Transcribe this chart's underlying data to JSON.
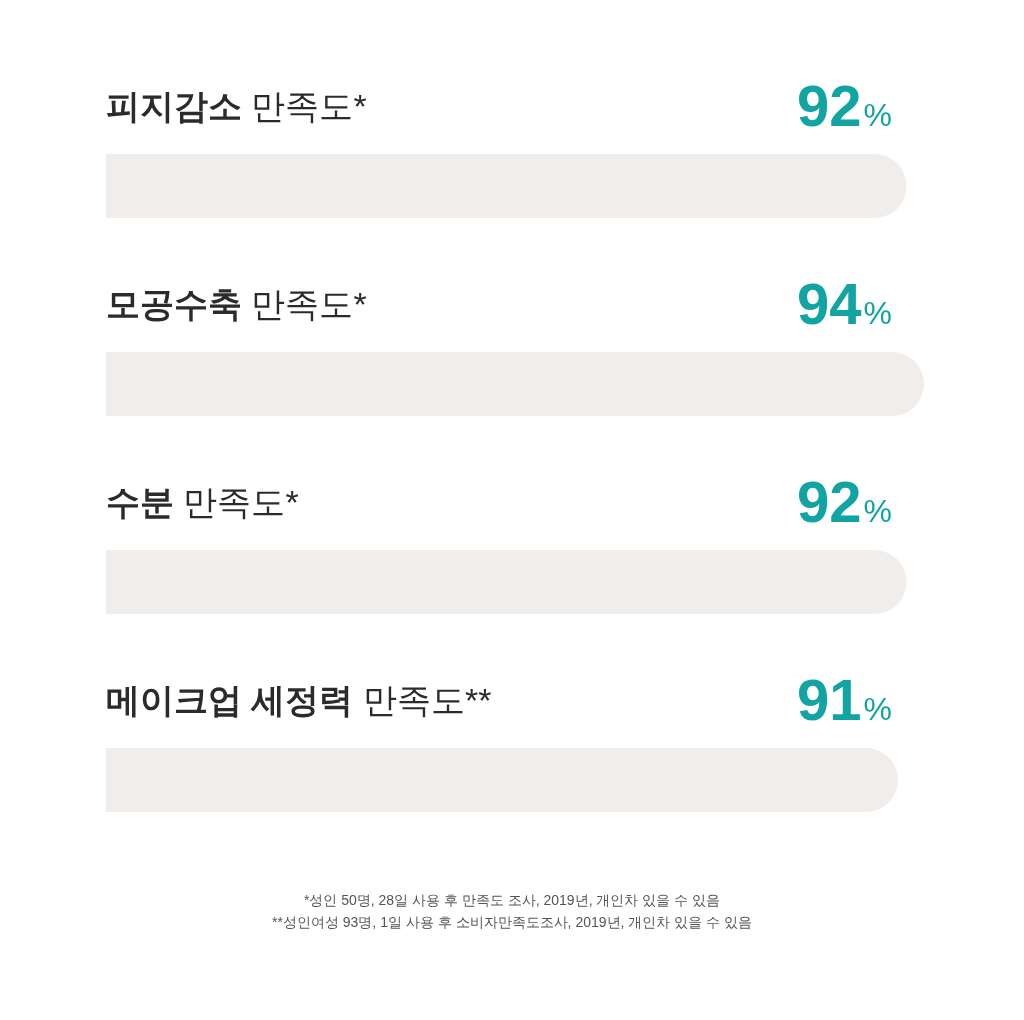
{
  "chart_data": {
    "type": "bar",
    "orientation": "horizontal",
    "categories": [
      "피지감소 만족도*",
      "모공수축 만족도*",
      "수분 만족도*",
      "메이크업 세정력 만족도**"
    ],
    "values": [
      92,
      94,
      92,
      91
    ],
    "value_labels": [
      "92%",
      "94%",
      "92%",
      "91%"
    ],
    "color": "#f1edea",
    "tick_labels": "y",
    "annotations": [
      "*성인 50명, 28일 사용 후 만족도 조사, 2019년, 개인차 있을 수 있음",
      "**성인여성 93명, 1일 사용 후 소비자만족도조사, 2019년, 개인차 있을 수 있음"
    ]
  }
}
